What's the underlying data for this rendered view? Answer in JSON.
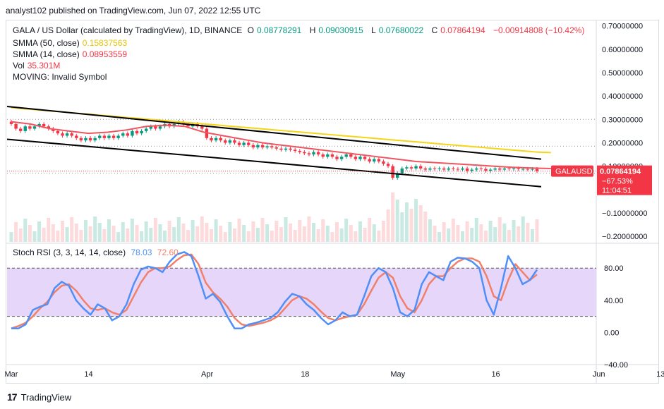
{
  "publisher": "analyst102 published on TradingView.com, Jun 07, 2022 12:55 UTC",
  "symbol_line": {
    "name": "GALA / US Dollar (calculated by TradingView), 1D, BINANCE",
    "o_label": "O",
    "o": "0.08778291",
    "h_label": "H",
    "h": "0.09030915",
    "l_label": "L",
    "l": "0.07680022",
    "c_label": "C",
    "c": "0.07864194",
    "change": "−0.00914808 (−10.42%)"
  },
  "sma50": {
    "label": "SMMA (50, close)",
    "value": "0.15837563",
    "color": "#f5d516"
  },
  "sma14": {
    "label": "SMMA (14, close)",
    "value": "0.08953559",
    "color": "#f0545f"
  },
  "vol": {
    "label": "Vol",
    "value": "35.301M"
  },
  "moving": {
    "label": "MOVING: Invalid Symbol"
  },
  "price_axis": {
    "ticks": [
      "0.70000000",
      "0.60000000",
      "0.50000000",
      "0.40000000",
      "0.30000000",
      "0.20000000",
      "0.10000000",
      "−0.10000000",
      "−0.20000000"
    ],
    "tick_values": [
      0.7,
      0.6,
      0.5,
      0.4,
      0.3,
      0.2,
      0.1,
      -0.1,
      -0.2
    ]
  },
  "price_badge": {
    "symbol": "GALAUSD",
    "price": "0.07864194",
    "pct": "−67.53%",
    "countdown": "11:04:51",
    "color": "#f23645"
  },
  "stoch": {
    "label": "Stoch RSI (3, 3, 14, 14, close)",
    "k_value": "78.03",
    "d_value": "72.60",
    "k_color": "#4f8ff7",
    "d_color": "#f0806a",
    "band_color": "#e6d6fa",
    "ticks": [
      "80.00",
      "40.00",
      "0.00",
      "−40.00"
    ],
    "tick_values": [
      80,
      40,
      0,
      -40
    ],
    "upper": 80,
    "lower": 20
  },
  "time_axis": {
    "labels": [
      "Mar",
      "14",
      "Apr",
      "18",
      "May",
      "16",
      "Jun",
      "13"
    ],
    "label_days": [
      0,
      15,
      38,
      57,
      75,
      94,
      114,
      126
    ]
  },
  "footer": {
    "brand": "TradingView"
  },
  "chart_data": {
    "type": "line",
    "title": "GALA / US Dollar (calculated by TradingView), 1D, BINANCE",
    "xlabel": "",
    "ylabel": "",
    "ylim": [
      -0.23,
      0.72
    ],
    "x_start": "2022-02-24",
    "x_end": "2022-06-07",
    "close": [
      0.28,
      0.26,
      0.25,
      0.27,
      0.26,
      0.27,
      0.28,
      0.27,
      0.26,
      0.25,
      0.24,
      0.23,
      0.24,
      0.23,
      0.22,
      0.21,
      0.22,
      0.21,
      0.22,
      0.23,
      0.22,
      0.23,
      0.22,
      0.23,
      0.24,
      0.23,
      0.25,
      0.24,
      0.25,
      0.26,
      0.27,
      0.26,
      0.27,
      0.28,
      0.27,
      0.28,
      0.29,
      0.28,
      0.27,
      0.28,
      0.27,
      0.26,
      0.22,
      0.21,
      0.22,
      0.21,
      0.2,
      0.21,
      0.2,
      0.19,
      0.2,
      0.19,
      0.18,
      0.19,
      0.18,
      0.185,
      0.18,
      0.175,
      0.17,
      0.175,
      0.17,
      0.165,
      0.16,
      0.155,
      0.15,
      0.16,
      0.15,
      0.14,
      0.15,
      0.14,
      0.13,
      0.14,
      0.15,
      0.14,
      0.13,
      0.14,
      0.13,
      0.12,
      0.13,
      0.12,
      0.11,
      0.1,
      0.05,
      0.07,
      0.09,
      0.095,
      0.09,
      0.1,
      0.09,
      0.085,
      0.09,
      0.088,
      0.09,
      0.085,
      0.09,
      0.088,
      0.085,
      0.09,
      0.08,
      0.085,
      0.09,
      0.088,
      0.08,
      0.085,
      0.09,
      0.085,
      0.09,
      0.088,
      0.09,
      0.087,
      0.088,
      0.0865,
      0.0878,
      0.0786
    ],
    "series": [
      {
        "name": "SMMA (50, close)",
        "values": [
          0.35,
          0.345,
          0.34,
          0.335,
          0.33,
          0.325,
          0.32,
          0.315,
          0.31,
          0.305,
          0.3,
          0.295,
          0.29,
          0.285,
          0.28,
          0.275,
          0.27,
          0.265,
          0.26,
          0.255,
          0.25,
          0.245,
          0.24,
          0.235,
          0.23,
          0.225,
          0.22,
          0.215,
          0.21,
          0.205,
          0.2,
          0.195,
          0.19,
          0.185,
          0.18,
          0.175,
          0.17,
          0.165,
          0.16,
          0.158
        ]
      },
      {
        "name": "SMMA (14, close)",
        "values": [
          0.29,
          0.28,
          0.26,
          0.25,
          0.24,
          0.245,
          0.255,
          0.27,
          0.275,
          0.27,
          0.245,
          0.23,
          0.215,
          0.2,
          0.19,
          0.18,
          0.17,
          0.16,
          0.15,
          0.14,
          0.13,
          0.12,
          0.115,
          0.11,
          0.105,
          0.1,
          0.095,
          0.092,
          0.0895
        ]
      },
      {
        "name": "Stoch RSI K",
        "values": [
          5,
          5,
          10,
          28,
          32,
          35,
          55,
          63,
          58,
          40,
          30,
          22,
          35,
          30,
          15,
          20,
          35,
          60,
          78,
          82,
          80,
          75,
          88,
          97,
          100,
          95,
          70,
          42,
          48,
          38,
          20,
          5,
          5,
          10,
          12,
          15,
          18,
          25,
          38,
          48,
          45,
          35,
          28,
          18,
          10,
          15,
          25,
          20,
          22,
          45,
          70,
          80,
          75,
          55,
          25,
          20,
          28,
          60,
          75,
          70,
          65,
          88,
          93,
          92,
          88,
          80,
          40,
          22,
          55,
          95,
          80,
          60,
          65,
          78
        ]
      },
      {
        "name": "Stoch RSI D",
        "values": [
          5,
          8,
          12,
          20,
          30,
          38,
          50,
          58,
          60,
          52,
          40,
          30,
          28,
          30,
          25,
          22,
          28,
          45,
          62,
          75,
          80,
          80,
          82,
          90,
          96,
          97,
          85,
          62,
          50,
          42,
          32,
          18,
          10,
          8,
          10,
          12,
          15,
          20,
          30,
          40,
          45,
          42,
          35,
          26,
          18,
          15,
          18,
          20,
          22,
          35,
          52,
          68,
          75,
          68,
          45,
          30,
          25,
          40,
          60,
          70,
          70,
          80,
          88,
          92,
          92,
          88,
          70,
          45,
          40,
          65,
          85,
          75,
          65,
          72
        ]
      }
    ]
  }
}
